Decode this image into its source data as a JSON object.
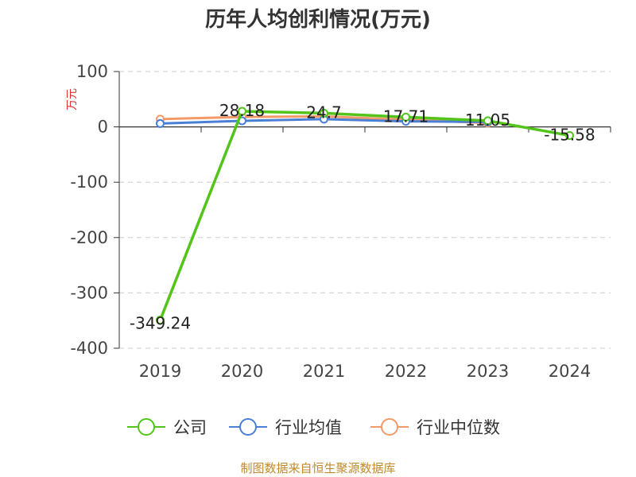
{
  "chart_data": {
    "type": "line",
    "title": "历年人均创利情况(万元)",
    "ylabel": "万元",
    "categories": [
      "2019",
      "2020",
      "2021",
      "2022",
      "2023",
      "2024"
    ],
    "ylim": [
      -400,
      100
    ],
    "yticks": [
      100,
      0,
      -100,
      -200,
      -300,
      -400
    ],
    "grid": true,
    "legend_position": "bottom",
    "series": [
      {
        "name": "公司",
        "color": "#52c41a",
        "values": [
          -349.24,
          28.18,
          24.7,
          17.71,
          11.05,
          -15.58
        ],
        "labels": [
          "-349.24",
          "28.18",
          "24.7",
          "17.71",
          "11.05",
          "-15.58"
        ]
      },
      {
        "name": "行业均值",
        "color": "#4a7fd6",
        "values": [
          6,
          11,
          14,
          10,
          9,
          null
        ]
      },
      {
        "name": "行业中位数",
        "color": "#f39a6b",
        "values": [
          14,
          18,
          19,
          13,
          7,
          null
        ]
      }
    ]
  },
  "source_text": "制图数据来自恒生聚源数据库"
}
